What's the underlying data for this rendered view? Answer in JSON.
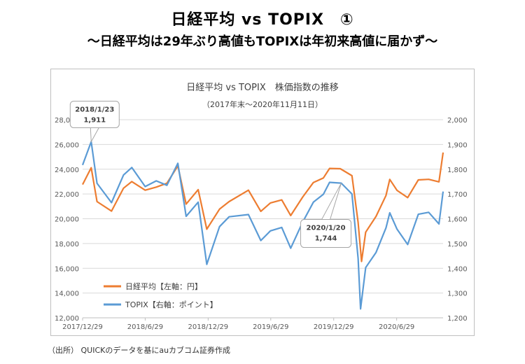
{
  "page": {
    "title": "日経平均 vs TOPIX　①",
    "subtitle": "～日経平均は29年ぶり高値もTOPIXは年初来高値に届かず～",
    "source": "（出所） QUICKのデータを基にauカブコム証券作成"
  },
  "chart_data": {
    "type": "line",
    "title": "日経平均 vs TOPIX　株価指数の推移",
    "subtitle": "（2017年末～2020年11月11日）",
    "x_start": "2017/12/29",
    "x_end": "2020/11/11",
    "x_ticks": [
      "2017/12/29",
      "2018/6/29",
      "2018/12/29",
      "2019/6/29",
      "2019/12/29",
      "2020/6/29"
    ],
    "y_left": {
      "min": 12000,
      "max": 28000,
      "step": 2000,
      "ticks": [
        "12,000",
        "14,000",
        "16,000",
        "18,000",
        "20,000",
        "22,000",
        "24,000",
        "26,000",
        "28,000"
      ]
    },
    "y_right": {
      "min": 1200,
      "max": 2000,
      "step": 100,
      "ticks": [
        "1,200",
        "1,300",
        "1,400",
        "1,500",
        "1,600",
        "1,700",
        "1,800",
        "1,900",
        "2,000"
      ]
    },
    "grid": "horizontal",
    "legend_position": "bottom-left",
    "series": [
      {
        "name": "日経平均【左軸：円】",
        "color": "#ed7d31",
        "axis": "left",
        "points": [
          [
            "2017-12-29",
            22764
          ],
          [
            "2018-01-23",
            24124
          ],
          [
            "2018-02-09",
            21383
          ],
          [
            "2018-03-23",
            20617
          ],
          [
            "2018-04-27",
            22468
          ],
          [
            "2018-05-21",
            23003
          ],
          [
            "2018-06-29",
            22305
          ],
          [
            "2018-07-31",
            22554
          ],
          [
            "2018-08-31",
            22865
          ],
          [
            "2018-10-02",
            24270
          ],
          [
            "2018-10-26",
            21184
          ],
          [
            "2018-11-30",
            22351
          ],
          [
            "2018-12-25",
            19155
          ],
          [
            "2019-01-31",
            20773
          ],
          [
            "2019-02-28",
            21385
          ],
          [
            "2019-04-25",
            22307
          ],
          [
            "2019-05-31",
            20601
          ],
          [
            "2019-06-28",
            21276
          ],
          [
            "2019-07-31",
            21522
          ],
          [
            "2019-08-26",
            20261
          ],
          [
            "2019-09-30",
            21756
          ],
          [
            "2019-10-31",
            22927
          ],
          [
            "2019-11-29",
            23294
          ],
          [
            "2019-12-17",
            24066
          ],
          [
            "2020-01-17",
            24041
          ],
          [
            "2020-02-20",
            23479
          ],
          [
            "2020-03-09",
            19698
          ],
          [
            "2020-03-19",
            16553
          ],
          [
            "2020-03-31",
            18917
          ],
          [
            "2020-04-30",
            20194
          ],
          [
            "2020-05-29",
            21878
          ],
          [
            "2020-06-09",
            23178
          ],
          [
            "2020-06-30",
            22288
          ],
          [
            "2020-07-31",
            21710
          ],
          [
            "2020-08-31",
            23140
          ],
          [
            "2020-09-30",
            23185
          ],
          [
            "2020-10-30",
            22977
          ],
          [
            "2020-11-11",
            25350
          ]
        ]
      },
      {
        "name": "TOPIX【右軸：ポイント】",
        "color": "#5b9bd5",
        "axis": "right",
        "points": [
          [
            "2017-12-29",
            1817
          ],
          [
            "2018-01-23",
            1911
          ],
          [
            "2018-02-09",
            1743
          ],
          [
            "2018-03-23",
            1665
          ],
          [
            "2018-04-27",
            1777
          ],
          [
            "2018-05-21",
            1807
          ],
          [
            "2018-06-29",
            1730
          ],
          [
            "2018-07-31",
            1753
          ],
          [
            "2018-08-31",
            1735
          ],
          [
            "2018-10-02",
            1824
          ],
          [
            "2018-10-26",
            1610
          ],
          [
            "2018-11-30",
            1667
          ],
          [
            "2018-12-25",
            1416
          ],
          [
            "2019-01-31",
            1568
          ],
          [
            "2019-02-28",
            1608
          ],
          [
            "2019-04-25",
            1617
          ],
          [
            "2019-05-31",
            1512
          ],
          [
            "2019-06-28",
            1551
          ],
          [
            "2019-07-31",
            1565
          ],
          [
            "2019-08-26",
            1481
          ],
          [
            "2019-09-30",
            1587
          ],
          [
            "2019-10-31",
            1667
          ],
          [
            "2019-11-29",
            1699
          ],
          [
            "2019-12-17",
            1747
          ],
          [
            "2020-01-20",
            1744
          ],
          [
            "2020-02-20",
            1700
          ],
          [
            "2020-03-09",
            1440
          ],
          [
            "2020-03-16",
            1236
          ],
          [
            "2020-03-31",
            1403
          ],
          [
            "2020-04-30",
            1464
          ],
          [
            "2020-05-29",
            1563
          ],
          [
            "2020-06-09",
            1624
          ],
          [
            "2020-06-30",
            1558
          ],
          [
            "2020-07-31",
            1496
          ],
          [
            "2020-08-31",
            1618
          ],
          [
            "2020-09-30",
            1626
          ],
          [
            "2020-10-30",
            1579
          ],
          [
            "2020-11-11",
            1710
          ]
        ]
      }
    ],
    "annotations": [
      {
        "label": "2018/1/23\n1,911",
        "date": "2018-01-23",
        "series": 1,
        "value": 1911
      },
      {
        "label": "2020/1/20\n1,744",
        "date": "2020-01-20",
        "series": 1,
        "value": 1744
      }
    ]
  }
}
